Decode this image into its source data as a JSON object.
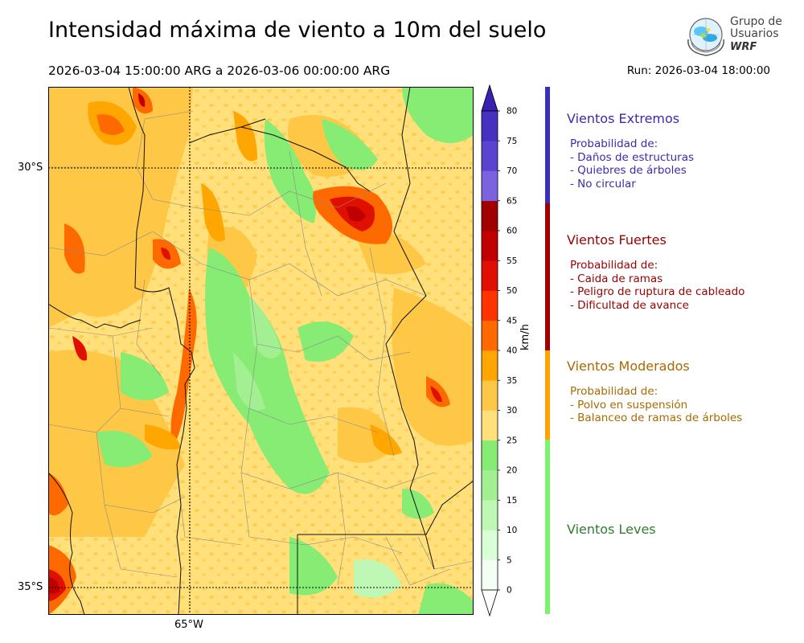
{
  "header": {
    "title": "Intensidad máxima de viento a 10m del suelo",
    "period": "2026-03-04 15:00:00 ARG  a  2026-03-06 00:00:00 ARG",
    "run": "Run: 2026-03-04 18:00:00"
  },
  "logo": {
    "line1": "Grupo de",
    "line2": "Usuarios",
    "line3": "WRF"
  },
  "map": {
    "lat_labels": [
      "30°S",
      "35°S"
    ],
    "lon_labels": [
      "65°W"
    ]
  },
  "colorbar": {
    "unit": "km/h",
    "ticks": [
      "0",
      "5",
      "10",
      "15",
      "20",
      "25",
      "30",
      "35",
      "40",
      "45",
      "50",
      "55",
      "60",
      "65",
      "70",
      "75",
      "80"
    ],
    "colors": [
      "#f2fff2",
      "#d9ffd6",
      "#bff7b5",
      "#a3f092",
      "#86ec74",
      "#ffe07a",
      "#ffc746",
      "#ffa600",
      "#ff6a00",
      "#ff3300",
      "#e01000",
      "#c00000",
      "#a00000",
      "#7b63e0",
      "#5a43cf",
      "#4530bf"
    ],
    "under_color": "#ffffff",
    "over_color": "#3a1fb0"
  },
  "categories": [
    {
      "name": "Vientos Extremos",
      "color": "#3d2aad",
      "bar_color": "#3a2fb8",
      "desc": [
        "Probabilidad de:",
        "- Daños de estructuras",
        "- Quiebres de árboles",
        "- No circular"
      ]
    },
    {
      "name": "Vientos Fuertes",
      "color": "#990000",
      "bar_color": "#9e0000",
      "desc": [
        "Probabilidad de:",
        "- Caida de ramas",
        "- Peligro de ruptura de cableado",
        "- Dificultad de avance"
      ]
    },
    {
      "name": "Vientos Moderados",
      "color": "#a96a00",
      "bar_color": "#ffa200",
      "desc": [
        "Probabilidad de:",
        "- Polvo en suspensión",
        "- Balanceo de ramas de árboles"
      ]
    },
    {
      "name": "Vientos Leves",
      "color": "#2f7d2f",
      "bar_color": "#7cf26e",
      "desc": []
    }
  ]
}
